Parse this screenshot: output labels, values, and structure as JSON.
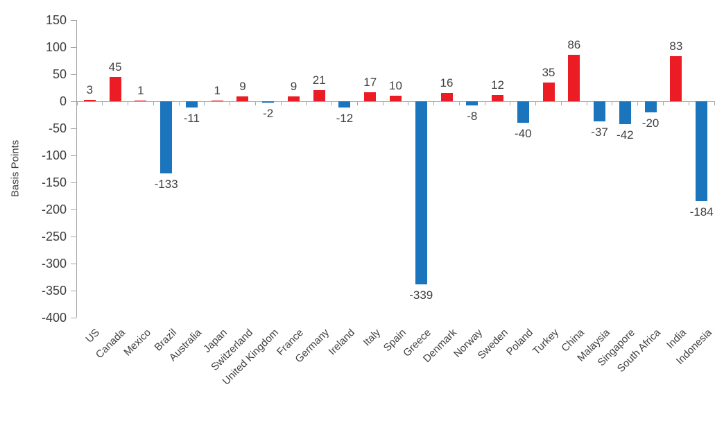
{
  "chart_data": {
    "type": "bar",
    "title": "",
    "xlabel": "",
    "ylabel": "Basis Points",
    "categories": [
      "US",
      "Canada",
      "Mexico",
      "Brazil",
      "Australia",
      "Japan",
      "Switzerland",
      "United Kingdom",
      "France",
      "Germany",
      "Ireland",
      "Italy",
      "Spain",
      "Greece",
      "Denmark",
      "Norway",
      "Sweden",
      "Poland",
      "Turkey",
      "China",
      "Malaysia",
      "Singapore",
      "South Africa",
      "India",
      "Indonesia"
    ],
    "values": [
      3,
      45,
      1,
      -133,
      -11,
      1,
      9,
      -2,
      9,
      21,
      -12,
      17,
      10,
      -339,
      16,
      -8,
      12,
      -40,
      35,
      86,
      -37,
      -42,
      -20,
      83,
      -184
    ],
    "ylim": [
      -400,
      150
    ],
    "ytick_step": 50,
    "ytick_labels": [
      "150",
      "100",
      "50",
      "0",
      "-50",
      "-100",
      "-150",
      "-200",
      "-250",
      "-300",
      "-350",
      "-400"
    ],
    "grid": false,
    "legend_position": "none",
    "data_labels": "outside-end",
    "positive_color": "#ec1c24",
    "negative_color": "#1b75bc",
    "text_color": "#404040",
    "axis_color": "#a6a6a6"
  }
}
